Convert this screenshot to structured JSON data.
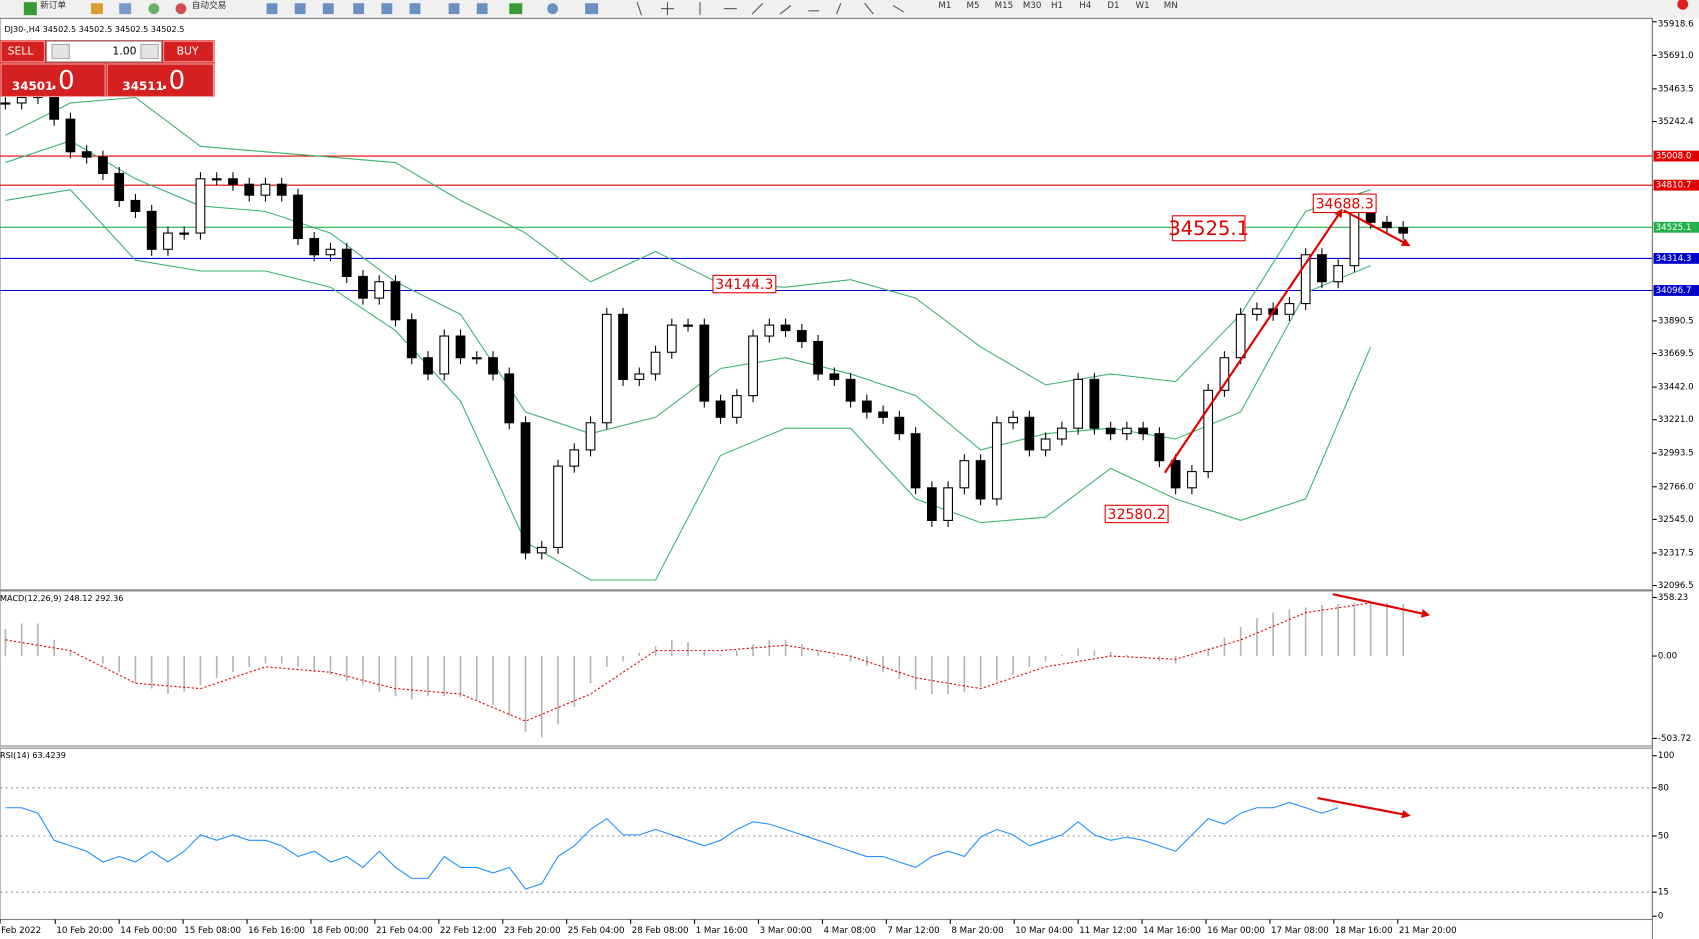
{
  "toolbar": {
    "new_order": "新订单",
    "auto_trading": "自动交易",
    "timeframes": [
      "M1",
      "M5",
      "M15",
      "M30",
      "H1",
      "H4",
      "D1",
      "W1",
      "MN"
    ]
  },
  "trade_panel": {
    "sell": "SELL",
    "lots": "1.00",
    "buy": "BUY",
    "bid_main": "34501",
    "bid_frac": ".0",
    "ask_main": "34511",
    "ask_frac": ".0"
  },
  "chart_data": [
    {
      "type": "candlestick",
      "title": "DJ30-,H4  34502.5 34502.5 34502.5 34502.5",
      "series": [
        {
          "up_color": "#ffffff",
          "down_color": "#000000",
          "values": [
            35368,
            35405,
            35442,
            35258,
            35037,
            35001,
            34890,
            34707,
            34633,
            34376,
            34486,
            34486,
            34854,
            34854,
            34817,
            34743,
            34817,
            34743,
            34449,
            34339,
            34376,
            34192,
            34045,
            34156,
            33898,
            33641,
            33531,
            33788,
            33641,
            33641,
            33531,
            33200,
            32318,
            32355,
            32906,
            33016,
            33200,
            33935,
            33494,
            33531,
            33678,
            33862,
            33862,
            33347,
            33237,
            33384,
            33788,
            33862,
            33825,
            33751,
            33531,
            33494,
            33347,
            33273,
            33237,
            33126,
            32759,
            32538,
            32759,
            32943,
            32684,
            33200,
            33237,
            33016,
            33090,
            33163,
            33494,
            33163,
            33126,
            33163,
            33126,
            32943,
            32759,
            32869,
            33420,
            33641,
            33935,
            33972,
            33935,
            34008,
            34339,
            34156,
            34265,
            34633,
            34559,
            34523,
            34486
          ]
        }
      ],
      "bands": {
        "color": "#3cb371",
        "upper": [
          35148,
          35368,
          35405,
          35074,
          35037,
          35001,
          34964,
          34707,
          34486,
          34156,
          34361,
          34141,
          34119,
          34170,
          34045,
          33714,
          33457,
          33531,
          33479,
          33935,
          34633,
          34780
        ],
        "middle": [
          34964,
          35111,
          34854,
          34670,
          34633,
          34486,
          34156,
          33935,
          33273,
          33126,
          33237,
          33568,
          33641,
          33531,
          33384,
          33016,
          33126,
          33163,
          33090,
          33273,
          34082,
          34265
        ],
        "lower": [
          34707,
          34780,
          34302,
          34229,
          34229,
          34119,
          33825,
          33347,
          32391,
          32134,
          32134,
          32979,
          33163,
          33163,
          32684,
          32523,
          32560,
          32891,
          32684,
          32538,
          32684,
          33714
        ]
      },
      "levels": [
        {
          "value": 35008.0,
          "label": "35008.0",
          "color": "#e00000"
        },
        {
          "value": 34810.7,
          "label": "34810.7",
          "color": "#e00000"
        },
        {
          "value": 34525.1,
          "label": "34525.1",
          "color": "#22b14c"
        },
        {
          "value": 34314.3,
          "label": "34314.3",
          "color": "#0000cc"
        },
        {
          "value": 34096.7,
          "label": "34096.7",
          "color": "#0000cc"
        }
      ],
      "annotations": [
        {
          "text": "34525.1"
        },
        {
          "text": "34688.3"
        },
        {
          "text": "34144.3"
        },
        {
          "text": "32580.2"
        }
      ],
      "ylim": [
        32082,
        35919
      ],
      "yticks": [
        35918.6,
        {
          "value": 35691.0,
          "label": "35691.0"
        },
        35463.5,
        35242.4,
        33890.5,
        33669.5,
        {
          "value": 33442.0,
          "label": "33442.0"
        },
        {
          "value": 33221.0,
          "label": "33221.0"
        },
        32993.5,
        {
          "value": 32766.0,
          "label": "32766.0"
        },
        {
          "value": 32545.0,
          "label": "32545.0"
        },
        32317.5,
        32096.5
      ],
      "time_labels": [
        "Feb 2022",
        "10 Feb 20:00",
        "14 Feb 00:00",
        "15 Feb 08:00",
        "16 Feb 16:00",
        "18 Feb 00:00",
        "21 Feb 04:00",
        "22 Feb 12:00",
        "23 Feb 20:00",
        "25 Feb 04:00",
        "28 Feb 08:00",
        "1 Mar 16:00",
        "3 Mar 00:00",
        "4 Mar 08:00",
        "7 Mar 12:00",
        "8 Mar 20:00",
        "10 Mar 04:00",
        "11 Mar 12:00",
        "14 Mar 16:00",
        "16 Mar 00:00",
        "17 Mar 08:00",
        "18 Mar 16:00",
        "21 Mar 20:00"
      ]
    },
    {
      "type": "macd",
      "title": "MACD(12,26,9) 248.12 292.36",
      "histogram_color": "#b4b4b4",
      "signal_color": "#e00000",
      "histogram": [
        166,
        199,
        199,
        99,
        33,
        0,
        -46,
        -99,
        -166,
        -199,
        -232,
        -219,
        -179,
        -133,
        -99,
        -66,
        -46,
        -46,
        -66,
        -99,
        -113,
        -152,
        -179,
        -219,
        -245,
        -265,
        -245,
        -245,
        -252,
        -265,
        -298,
        -365,
        -464,
        -497,
        -418,
        -312,
        -166,
        -66,
        -33,
        20,
        60,
        99,
        86,
        33,
        7,
        33,
        73,
        99,
        99,
        73,
        33,
        -7,
        -33,
        -60,
        -99,
        -139,
        -206,
        -232,
        -232,
        -219,
        -192,
        -152,
        -113,
        -66,
        -33,
        7,
        46,
        33,
        27,
        7,
        -7,
        -33,
        -46,
        -7,
        46,
        113,
        179,
        232,
        265,
        285,
        298,
        312,
        318,
        325,
        332,
        325,
        318
      ],
      "signal": [
        99,
        33,
        -166,
        -199,
        -66,
        -99,
        -199,
        -232,
        -398,
        -232,
        33,
        33,
        66,
        0,
        -133,
        -199,
        -66,
        0,
        -20,
        99,
        265,
        325
      ],
      "ylim": [
        -550,
        398
      ],
      "yticks": [
        358.23,
        {
          "value": 0,
          "label": "0.00"
        },
        -503.72
      ]
    },
    {
      "type": "rsi",
      "title": "RSI(14) 63.4239",
      "color": "#1e90ff",
      "values": [
        67.6,
        67.6,
        64.2,
        47.3,
        43.9,
        40.5,
        33.8,
        37.2,
        33.8,
        40.5,
        33.8,
        40.5,
        50.7,
        47.3,
        50.7,
        47.3,
        47.3,
        43.9,
        37.2,
        40.5,
        33.8,
        37.2,
        30.4,
        40.5,
        30.4,
        23.6,
        23.6,
        37.2,
        30.4,
        30.4,
        27.0,
        30.4,
        16.9,
        20.3,
        37.2,
        43.9,
        54.1,
        60.8,
        50.7,
        50.7,
        54.1,
        50.7,
        47.3,
        43.9,
        47.3,
        54.1,
        58.8,
        57.4,
        54.1,
        50.7,
        47.3,
        43.9,
        40.5,
        37.2,
        37.2,
        33.8,
        30.4,
        37.2,
        40.5,
        37.2,
        49.3,
        54.1,
        50.7,
        43.9,
        47.3,
        50.7,
        58.8,
        50.7,
        47.3,
        49.3,
        47.3,
        43.9,
        40.5,
        50.7,
        60.8,
        57.4,
        64.2,
        67.6,
        67.6,
        70.9,
        67.6,
        64.2,
        67.6
      ],
      "ylim": [
        0,
        100
      ],
      "yticks": [
        100,
        80,
        50,
        15,
        0
      ],
      "levels": [
        80,
        50,
        15
      ]
    }
  ]
}
